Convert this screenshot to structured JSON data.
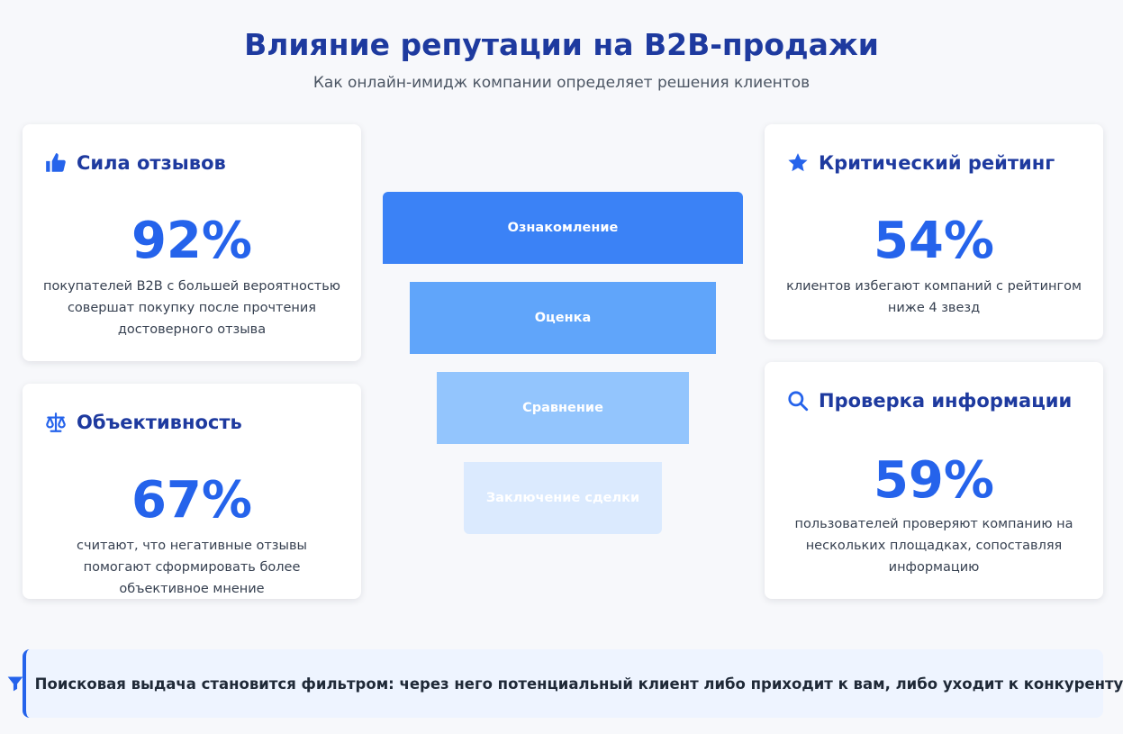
{
  "header": {
    "title": "Влияние репутации на B2B-продажи",
    "subtitle": "Как онлайн-имидж компании определяет решения клиентов"
  },
  "cards": {
    "reviews": {
      "icon": "thumbs-up-icon",
      "title": "Сила отзывов",
      "stat": "92%",
      "desc": "покупателей B2B с большей вероятностью совершат покупку после прочтения достоверного отзыва"
    },
    "objectivity": {
      "icon": "scales-icon",
      "title": "Объективность",
      "stat": "67%",
      "desc": "считают, что негативные отзывы помогают сформировать более объективное мнение"
    },
    "rating": {
      "icon": "star-icon",
      "title": "Критический рейтинг",
      "stat": "54%",
      "desc": "клиентов избегают компаний с рейтингом ниже 4 звезд"
    },
    "verification": {
      "icon": "search-icon",
      "title": "Проверка информации",
      "stat": "59%",
      "desc": "пользователей проверяют компанию на нескольких площадках, сопоставляя информацию"
    }
  },
  "funnel": {
    "steps": [
      {
        "label": "Ознакомление",
        "color": "#3b82f6"
      },
      {
        "label": "Оценка",
        "color": "#60a5fa"
      },
      {
        "label": "Сравнение",
        "color": "#93c5fd"
      },
      {
        "label": "Заключение сделки",
        "color": "#dbeafe"
      }
    ]
  },
  "banner": {
    "icon": "filter-icon",
    "text": "Поисковая выдача становится фильтром: через него потенциальный клиент либо приходит к вам, либо уходит к конкуренту"
  },
  "colors": {
    "accent": "#2563eb",
    "heading": "#1e3a9f",
    "background": "#f7f8fb"
  }
}
